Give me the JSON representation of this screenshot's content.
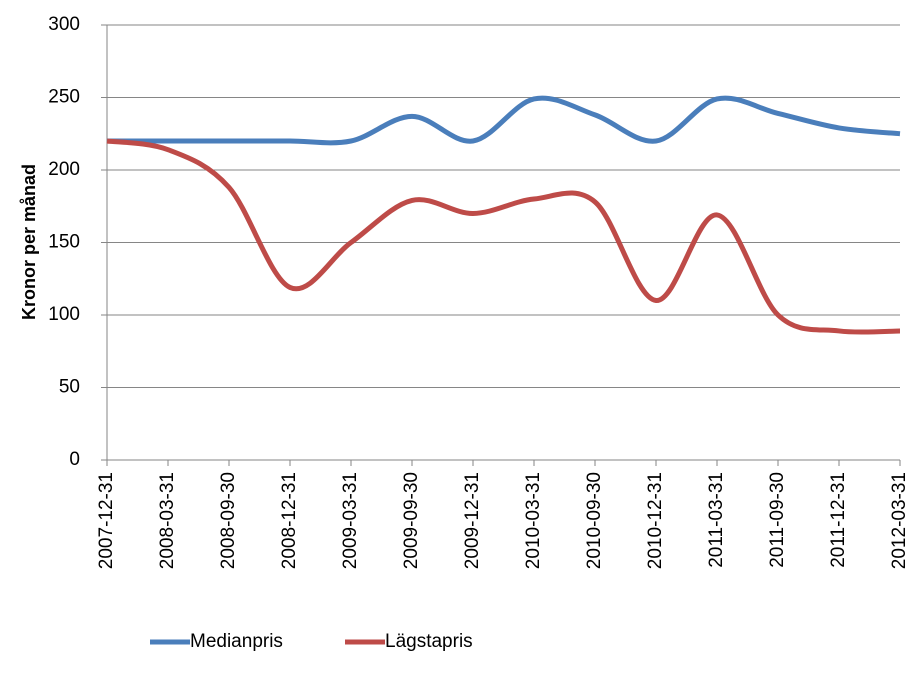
{
  "chart_data": {
    "type": "line",
    "y_label": "Kronor per månad",
    "categories": [
      "2007-12-31",
      "2008-03-31",
      "2008-09-30",
      "2008-12-31",
      "2009-03-31",
      "2009-09-30",
      "2009-12-31",
      "2010-03-31",
      "2010-09-30",
      "2010-12-31",
      "2011-03-31",
      "2011-09-30",
      "2011-12-31",
      "2012-03-31"
    ],
    "series": [
      {
        "name": "Medianpris",
        "color": "#4a7ebb",
        "values": [
          220,
          220,
          220,
          220,
          220,
          237,
          220,
          249,
          238,
          220,
          249,
          239,
          229,
          225
        ]
      },
      {
        "name": "Lägstapris",
        "color": "#be4b48",
        "values": [
          220,
          214,
          188,
          119,
          150,
          179,
          170,
          180,
          178,
          110,
          169,
          100,
          89,
          89
        ]
      }
    ],
    "ylim": [
      0,
      300
    ],
    "yticks": [
      0,
      50,
      100,
      150,
      200,
      250,
      300
    ],
    "grid": true,
    "smooth": true,
    "legend": "bottom"
  }
}
